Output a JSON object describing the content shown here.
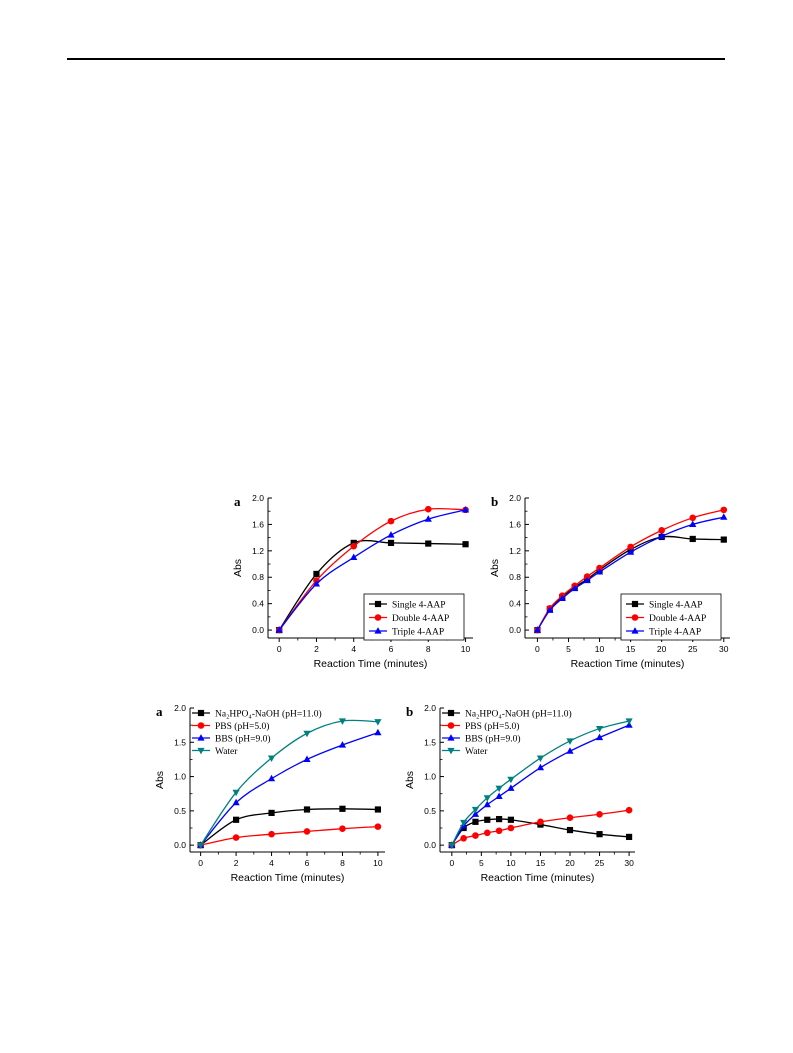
{
  "chart_data": [
    {
      "type": "line",
      "panel": "a",
      "xlabel": "Reaction Time (minutes)",
      "ylabel": "Abs",
      "xlim": [
        -0.6,
        10.4
      ],
      "ylim": [
        -0.12,
        2.0
      ],
      "xticks": [
        0,
        2,
        4,
        6,
        8,
        10
      ],
      "xtick_labels": [
        "0",
        "2",
        "4",
        "6",
        "8",
        "10"
      ],
      "yticks": [
        0,
        0.4,
        0.8,
        1.2,
        1.6,
        2.0
      ],
      "ytick_labels": [
        "0.0",
        "0.4",
        "0.8",
        "1.2",
        "1.6",
        "2.0"
      ],
      "legend_position": "bottom-right",
      "legend_boxed": true,
      "series": [
        {
          "name": "Single 4-AAP",
          "color": "#000000",
          "marker": "square",
          "x": [
            0,
            2,
            4,
            6,
            8,
            10
          ],
          "values": [
            0.0,
            0.85,
            1.32,
            1.32,
            1.31,
            1.3
          ]
        },
        {
          "name": "Double 4-AAP",
          "color": "#ff0000",
          "marker": "circle",
          "x": [
            0,
            2,
            4,
            6,
            8,
            10
          ],
          "values": [
            0.0,
            0.75,
            1.27,
            1.65,
            1.83,
            1.82
          ]
        },
        {
          "name": "Triple 4-AAP",
          "color": "#0000ff",
          "marker": "triangle-up",
          "x": [
            0,
            2,
            4,
            6,
            8,
            10
          ],
          "values": [
            0.0,
            0.7,
            1.1,
            1.44,
            1.68,
            1.82
          ]
        }
      ]
    },
    {
      "type": "line",
      "panel": "b",
      "xlabel": "Reaction Time (minutes)",
      "ylabel": "Abs",
      "xlim": [
        -2,
        31
      ],
      "ylim": [
        -0.12,
        2.0
      ],
      "xticks": [
        0,
        5,
        10,
        15,
        20,
        25,
        30
      ],
      "xtick_labels": [
        "0",
        "5",
        "10",
        "15",
        "20",
        "25",
        "30"
      ],
      "yticks": [
        0,
        0.4,
        0.8,
        1.2,
        1.6,
        2.0
      ],
      "ytick_labels": [
        "0.0",
        "0.4",
        "0.8",
        "1.2",
        "1.6",
        "2.0"
      ],
      "legend_position": "bottom-right",
      "legend_boxed": true,
      "series": [
        {
          "name": "Single 4-AAP",
          "color": "#000000",
          "marker": "square",
          "x": [
            0,
            2,
            4,
            6,
            8,
            10,
            15,
            20,
            25,
            30
          ],
          "values": [
            0.0,
            0.32,
            0.5,
            0.65,
            0.77,
            0.91,
            1.22,
            1.41,
            1.38,
            1.37
          ]
        },
        {
          "name": "Double 4-AAP",
          "color": "#ff0000",
          "marker": "circle",
          "x": [
            0,
            2,
            4,
            6,
            8,
            10,
            15,
            20,
            25,
            30
          ],
          "values": [
            0.0,
            0.33,
            0.52,
            0.67,
            0.81,
            0.94,
            1.26,
            1.51,
            1.7,
            1.82
          ]
        },
        {
          "name": "Triple 4-AAP",
          "color": "#0000ff",
          "marker": "triangle-up",
          "x": [
            0,
            2,
            4,
            6,
            8,
            10,
            15,
            20,
            25,
            30
          ],
          "values": [
            0.0,
            0.3,
            0.48,
            0.63,
            0.75,
            0.88,
            1.18,
            1.42,
            1.6,
            1.71
          ]
        }
      ]
    },
    {
      "type": "line",
      "panel": "a",
      "xlabel": "Reaction Time (minutes)",
      "ylabel": "Abs",
      "xlim": [
        -0.6,
        10.4
      ],
      "ylim": [
        -0.1,
        2.0
      ],
      "xticks": [
        0,
        2,
        4,
        6,
        8,
        10
      ],
      "xtick_labels": [
        "0",
        "2",
        "4",
        "6",
        "8",
        "10"
      ],
      "yticks": [
        0,
        0.5,
        1.0,
        1.5,
        2.0
      ],
      "ytick_labels": [
        "0.0",
        "0.5",
        "1.0",
        "1.5",
        "2.0"
      ],
      "legend_position": "top-left",
      "legend_boxed": false,
      "series": [
        {
          "name": "Na₂HPO₄-NaOH (pH=11.0)",
          "color": "#000000",
          "marker": "square",
          "x": [
            0,
            2,
            4,
            6,
            8,
            10
          ],
          "values": [
            0.0,
            0.37,
            0.47,
            0.52,
            0.53,
            0.52
          ]
        },
        {
          "name": "PBS (pH=5.0)",
          "color": "#ff0000",
          "marker": "circle",
          "x": [
            0,
            2,
            4,
            6,
            8,
            10
          ],
          "values": [
            0.0,
            0.11,
            0.16,
            0.2,
            0.24,
            0.27
          ]
        },
        {
          "name": "BBS (pH=9.0)",
          "color": "#0000ff",
          "marker": "triangle-up",
          "x": [
            0,
            2,
            4,
            6,
            8,
            10
          ],
          "values": [
            0.0,
            0.62,
            0.97,
            1.25,
            1.46,
            1.64
          ]
        },
        {
          "name": "Water",
          "color": "#008080",
          "marker": "triangle-down",
          "x": [
            0,
            2,
            4,
            6,
            8,
            10
          ],
          "values": [
            0.0,
            0.77,
            1.27,
            1.63,
            1.81,
            1.8
          ]
        }
      ]
    },
    {
      "type": "line",
      "panel": "b",
      "xlabel": "Reaction Time (minutes)",
      "ylabel": "Abs",
      "xlim": [
        -2,
        31
      ],
      "ylim": [
        -0.1,
        2.0
      ],
      "xticks": [
        0,
        5,
        10,
        15,
        20,
        25,
        30
      ],
      "xtick_labels": [
        "0",
        "5",
        "10",
        "15",
        "20",
        "25",
        "30"
      ],
      "yticks": [
        0,
        0.5,
        1.0,
        1.5,
        2.0
      ],
      "ytick_labels": [
        "0.0",
        "0.5",
        "1.0",
        "1.5",
        "2.0"
      ],
      "legend_position": "top-left",
      "legend_boxed": false,
      "series": [
        {
          "name": "Na₂HPO₄-NaOH (pH=11.0)",
          "color": "#000000",
          "marker": "square",
          "x": [
            0,
            2,
            4,
            6,
            8,
            10,
            15,
            20,
            25,
            30
          ],
          "values": [
            0.0,
            0.25,
            0.34,
            0.37,
            0.38,
            0.37,
            0.3,
            0.22,
            0.16,
            0.12
          ]
        },
        {
          "name": "PBS (pH=5.0)",
          "color": "#ff0000",
          "marker": "circle",
          "x": [
            0,
            2,
            4,
            6,
            8,
            10,
            15,
            20,
            25,
            30
          ],
          "values": [
            0.0,
            0.1,
            0.14,
            0.18,
            0.21,
            0.25,
            0.34,
            0.4,
            0.45,
            0.51
          ]
        },
        {
          "name": "BBS (pH=9.0)",
          "color": "#0000ff",
          "marker": "triangle-up",
          "x": [
            0,
            2,
            4,
            6,
            8,
            10,
            15,
            20,
            25,
            30
          ],
          "values": [
            0.0,
            0.28,
            0.45,
            0.59,
            0.71,
            0.83,
            1.13,
            1.37,
            1.57,
            1.75
          ]
        },
        {
          "name": "Water",
          "color": "#008080",
          "marker": "triangle-down",
          "x": [
            0,
            2,
            4,
            6,
            8,
            10,
            15,
            20,
            25,
            30
          ],
          "values": [
            0.0,
            0.33,
            0.52,
            0.69,
            0.83,
            0.96,
            1.27,
            1.52,
            1.7,
            1.81
          ]
        }
      ]
    }
  ]
}
